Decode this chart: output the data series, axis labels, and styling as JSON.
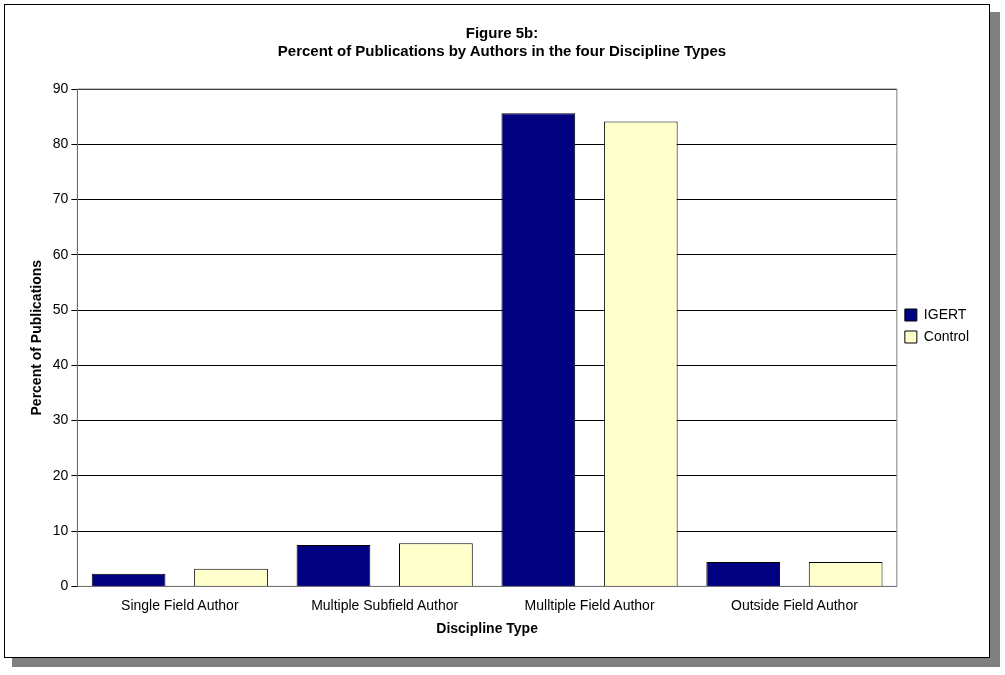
{
  "chart_data": {
    "type": "bar",
    "title": "Figure 5b:\nPercent of Publications by Authors in the four Discipline Types",
    "xlabel": "Discipline Type",
    "ylabel": "Percent of Publications",
    "categories": [
      "Single Field Author",
      "Multiple Subfield Author",
      "Mulltiple Field Author",
      "Outside Field Author"
    ],
    "series": [
      {
        "name": "IGERT",
        "color": "#000080",
        "values": [
          2.3,
          7.5,
          85.6,
          4.4
        ]
      },
      {
        "name": "Control",
        "color": "#ffffcc",
        "values": [
          3.2,
          7.8,
          84.1,
          4.4
        ]
      }
    ],
    "ylim": [
      0,
      90
    ],
    "yticks": [
      0,
      10,
      20,
      30,
      40,
      50,
      60,
      70,
      80,
      90
    ],
    "grid": "y",
    "legend": "right"
  }
}
